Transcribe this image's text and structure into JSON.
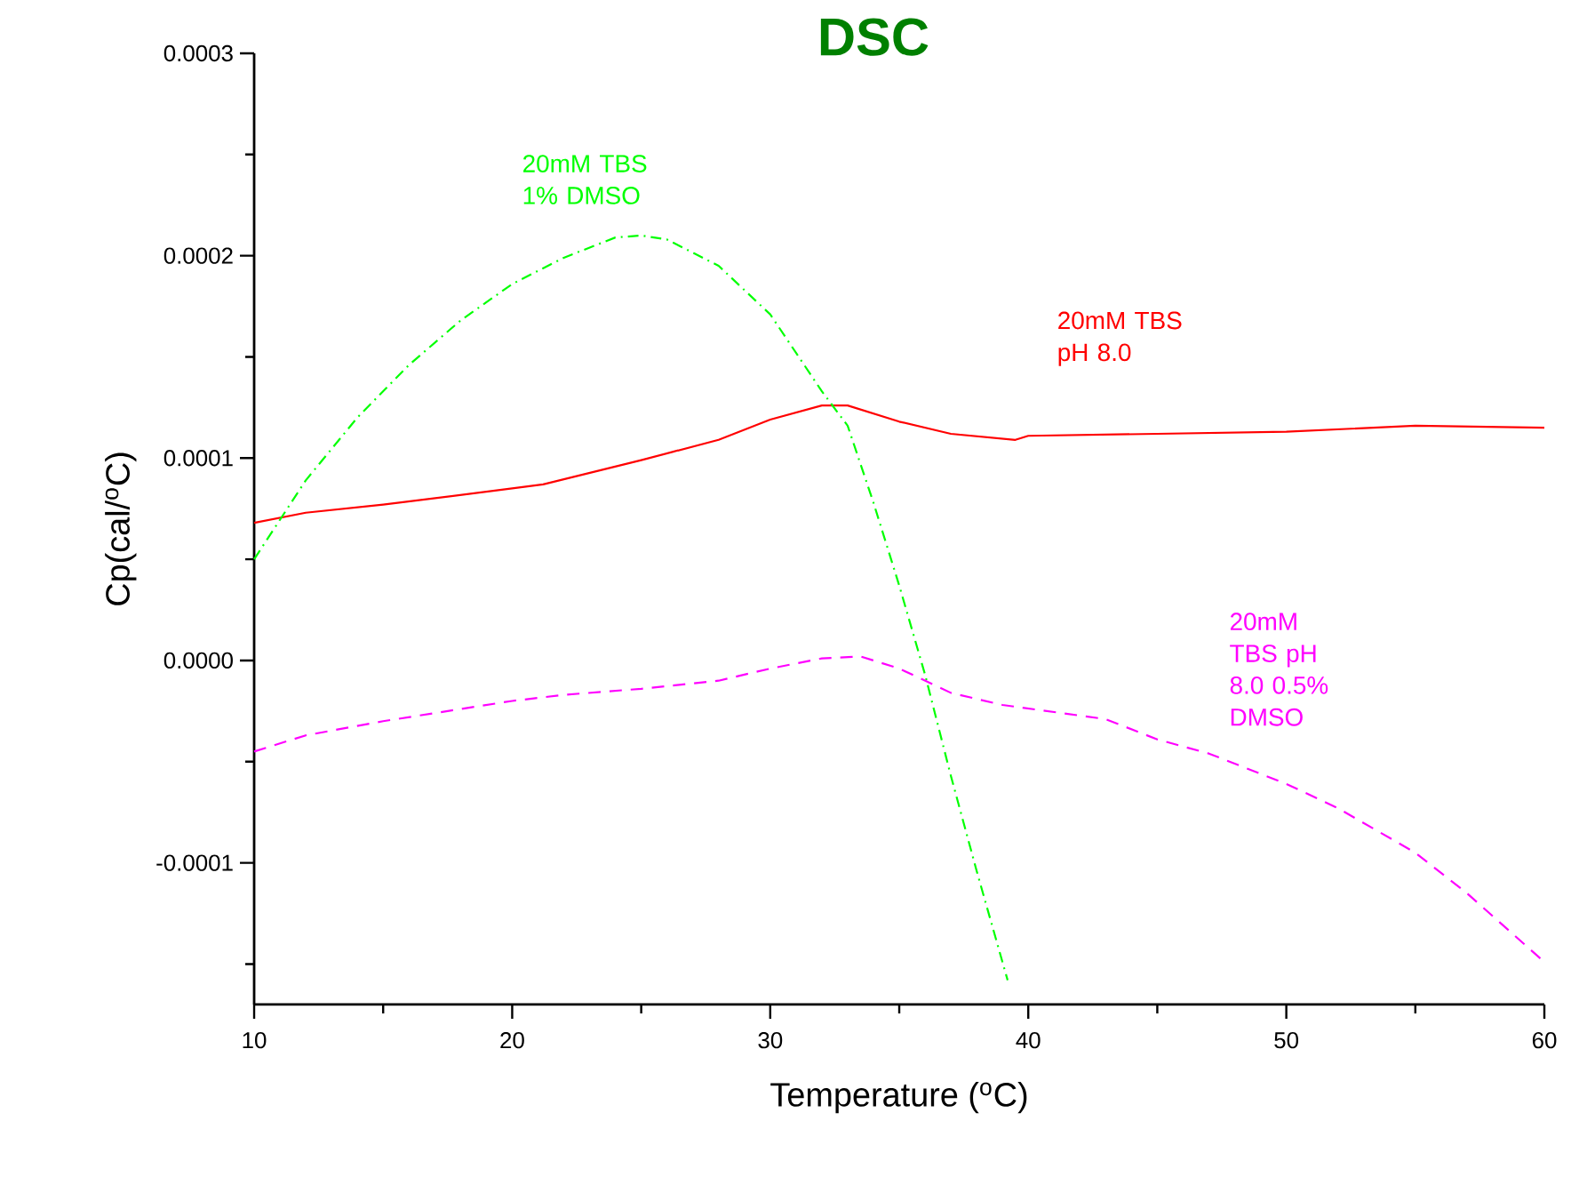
{
  "chart_data": {
    "type": "line",
    "title": "DSC",
    "xlabel": "Temperature ($^{o}$C)",
    "ylabel": "Cp(cal/$^{o}$C)",
    "xlim": [
      10,
      60
    ],
    "ylim": [
      -0.00017,
      0.0003
    ],
    "xticks": [
      10,
      {
        "value": 15,
        "label": null
      },
      20,
      {
        "value": 25,
        "label": null
      },
      30,
      {
        "value": 35,
        "label": null
      },
      40,
      {
        "value": 45,
        "label": null
      },
      50,
      {
        "value": 55,
        "label": null
      },
      60
    ],
    "yticks": [
      {
        "value": 0.0003,
        "label": "0.0003"
      },
      {
        "value": 0.00025,
        "label": null
      },
      {
        "value": 0.0002,
        "label": "0.0002"
      },
      {
        "value": 0.00015,
        "label": null
      },
      {
        "value": 0.0001,
        "label": "0.0001"
      },
      {
        "value": 5e-05,
        "label": null
      },
      {
        "value": 0,
        "label": "0.0000"
      },
      {
        "value": -5e-05,
        "label": null
      },
      {
        "value": -0.0001,
        "label": "-0.0001"
      },
      {
        "value": -0.00015,
        "label": null
      }
    ],
    "series": [
      {
        "name": "20mM TBS pH 8.0",
        "color": "#ff0000",
        "line_style": "solid",
        "x": [
          10,
          12,
          15,
          20,
          21.2,
          25,
          28,
          30,
          32,
          33,
          35,
          37,
          39.5,
          40,
          45,
          50,
          55,
          60
        ],
        "values": [
          6.8e-05,
          7.3e-05,
          7.7e-05,
          8.5e-05,
          8.7e-05,
          9.9e-05,
          0.000109,
          0.000119,
          0.000126,
          0.000126,
          0.000118,
          0.000112,
          0.000109,
          0.000111,
          0.000112,
          0.000113,
          0.000116,
          0.000115
        ]
      },
      {
        "name": "20mM TBS 1% DMSO",
        "color": "#00ff00",
        "line_style": "dashdot",
        "x": [
          10,
          12,
          14,
          16,
          18,
          20,
          22,
          24,
          25,
          26,
          28,
          30,
          32,
          33,
          34,
          35,
          36,
          37,
          38,
          39.2
        ],
        "values": [
          5e-05,
          8.9e-05,
          0.00012,
          0.000146,
          0.000168,
          0.000186,
          0.000199,
          0.000209,
          0.00021,
          0.000208,
          0.000195,
          0.000171,
          0.000133,
          0.000116,
          7.8e-05,
          3.7e-05,
          -7e-06,
          -5.7e-05,
          -0.000104,
          -0.000158
        ]
      },
      {
        "name": "20mM TBS pH 8.0 0.5% DMSO",
        "color": "#ff00ff",
        "line_style": "dashed",
        "x": [
          10,
          12,
          15,
          20,
          22,
          25,
          28,
          30,
          32,
          33.5,
          35,
          37,
          39,
          43,
          45,
          47,
          50,
          52,
          55,
          57,
          60
        ],
        "values": [
          -4.5e-05,
          -3.7e-05,
          -3e-05,
          -2e-05,
          -1.7e-05,
          -1.4e-05,
          -1e-05,
          -4e-06,
          1e-06,
          2e-06,
          -4e-06,
          -1.6e-05,
          -2.2e-05,
          -2.9e-05,
          -3.9e-05,
          -4.6e-05,
          -6.1e-05,
          -7.3e-05,
          -9.5e-05,
          -0.000115,
          -0.000149
        ]
      }
    ]
  }
}
